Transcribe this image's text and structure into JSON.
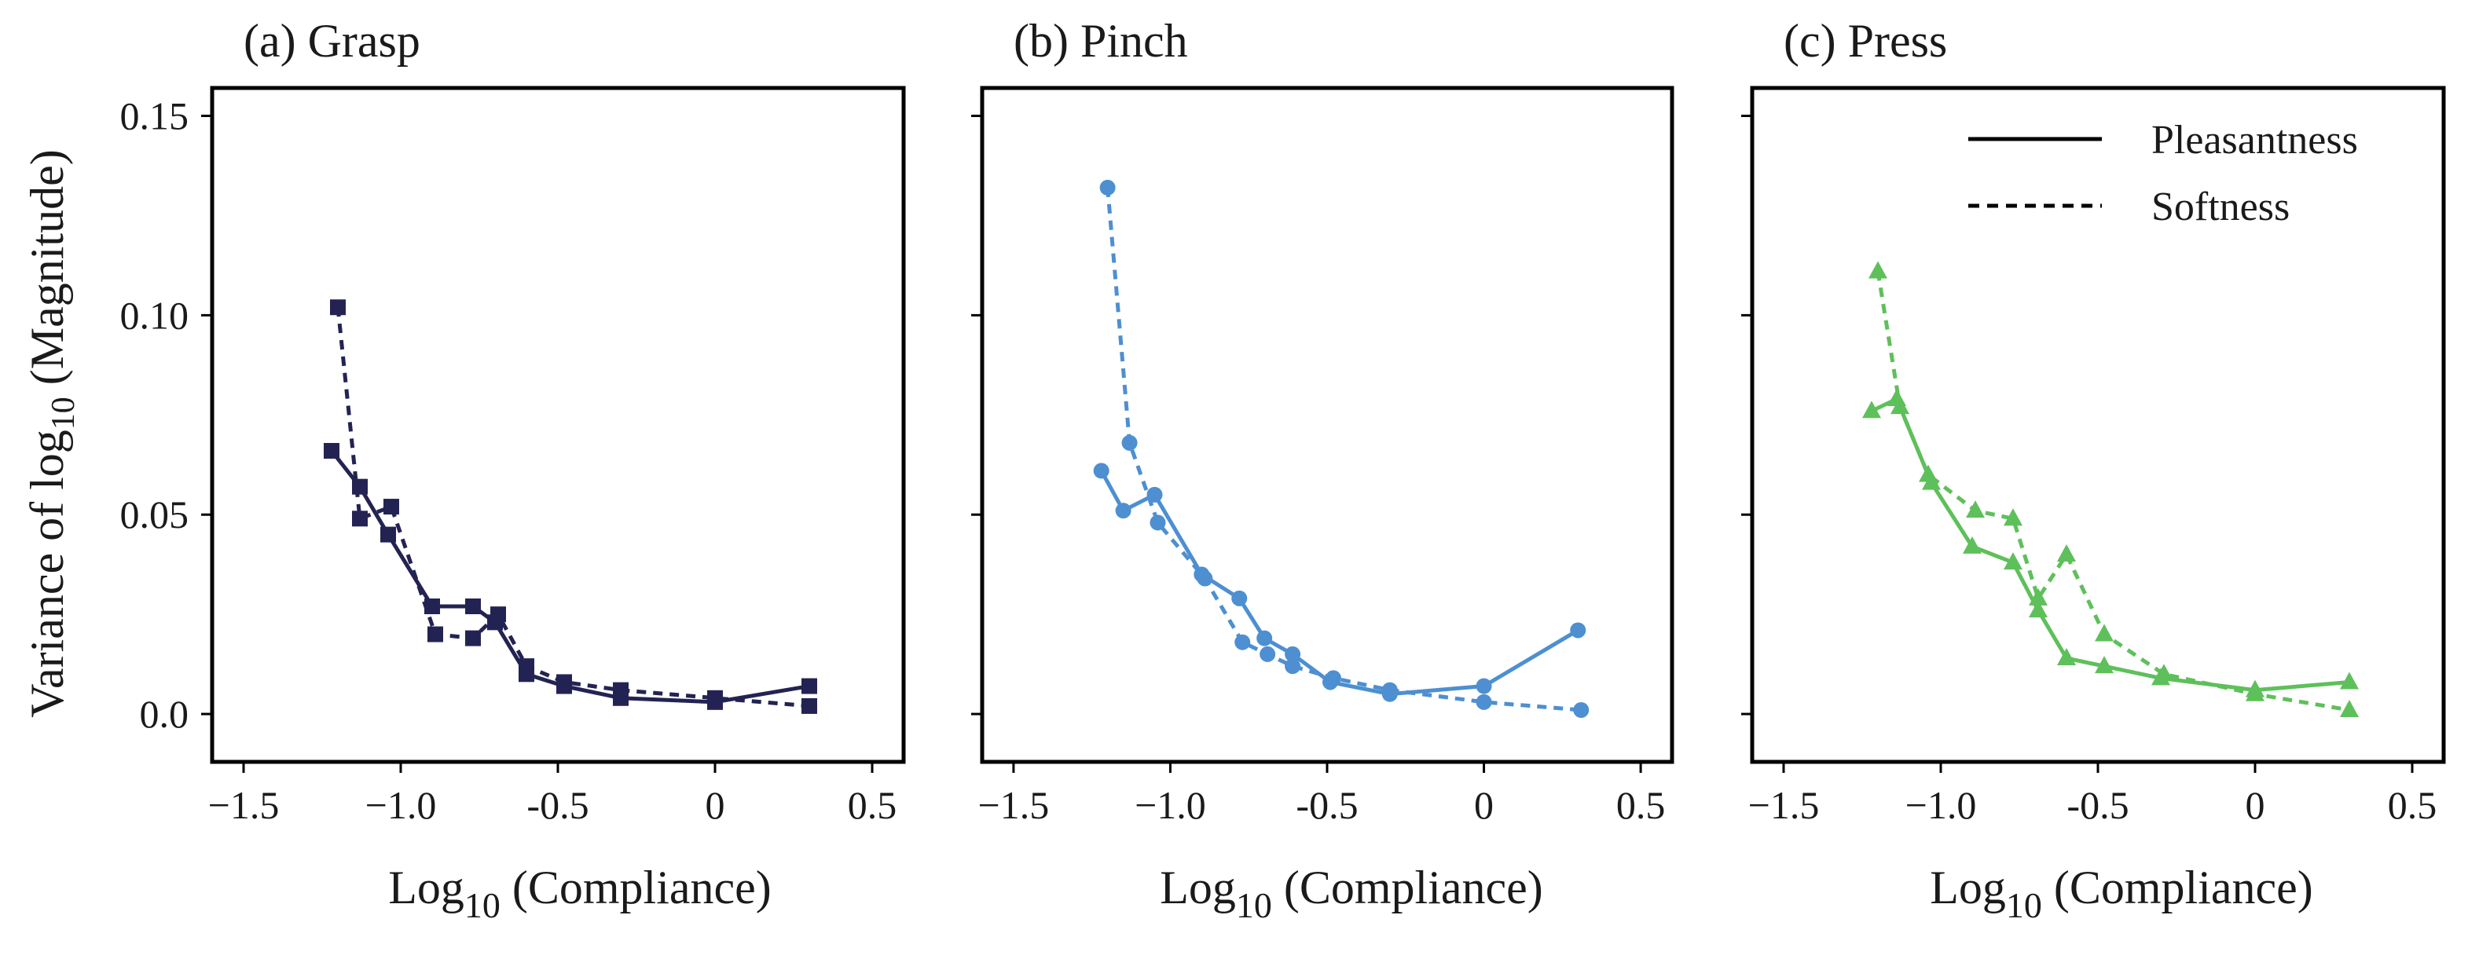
{
  "y_label": {
    "prefix": "Variance of log",
    "subscript": "10",
    "suffix": " (Magnitude)"
  },
  "x_label": {
    "prefix": "Log",
    "subscript": "10",
    "suffix": " (Compliance)"
  },
  "legend": [
    {
      "label": "Pleasantness",
      "style": "solid"
    },
    {
      "label": "Softness",
      "style": "dashed"
    }
  ],
  "x_ticks": [
    "−1.5",
    "−1.0",
    "-0.5",
    "0",
    "0.5"
  ],
  "y_ticks": [
    "0.0",
    "0.05",
    "0.10",
    "0.15"
  ],
  "chart_data": [
    {
      "type": "line",
      "title": "(a) Grasp",
      "color": "#232353",
      "marker": "square",
      "xlabel": "Log10 (Compliance)",
      "ylabel": "Variance of log10 (Magnitude)",
      "xlim": [
        -1.6,
        0.6
      ],
      "ylim": [
        -0.012,
        0.157
      ],
      "x_tick_values": [
        -1.5,
        -1.0,
        -0.5,
        0,
        0.5
      ],
      "y_tick_values": [
        0.0,
        0.05,
        0.1,
        0.15
      ],
      "series": [
        {
          "name": "Pleasantness",
          "style": "solid",
          "x": [
            -1.22,
            -1.13,
            -1.04,
            -0.9,
            -0.77,
            -0.7,
            -0.6,
            -0.48,
            -0.3,
            0.0,
            0.3
          ],
          "y": [
            0.066,
            0.057,
            0.045,
            0.027,
            0.027,
            0.023,
            0.01,
            0.007,
            0.004,
            0.003,
            0.007
          ]
        },
        {
          "name": "Softness",
          "style": "dashed",
          "x": [
            -1.2,
            -1.13,
            -1.03,
            -0.89,
            -0.77,
            -0.69,
            -0.6,
            -0.48,
            -0.3,
            0.0,
            0.3
          ],
          "y": [
            0.102,
            0.049,
            0.052,
            0.02,
            0.019,
            0.025,
            0.012,
            0.008,
            0.006,
            0.004,
            0.002
          ]
        }
      ]
    },
    {
      "type": "line",
      "title": "(b) Pinch",
      "color": "#4d8fd1",
      "marker": "circle",
      "xlabel": "Log10 (Compliance)",
      "ylabel": "Variance of log10 (Magnitude)",
      "xlim": [
        -1.6,
        0.6
      ],
      "ylim": [
        -0.012,
        0.157
      ],
      "x_tick_values": [
        -1.5,
        -1.0,
        -0.5,
        0,
        0.5
      ],
      "y_tick_values": [
        0.0,
        0.05,
        0.1,
        0.15
      ],
      "series": [
        {
          "name": "Pleasantness",
          "style": "solid",
          "x": [
            -1.22,
            -1.15,
            -1.05,
            -0.9,
            -0.78,
            -0.7,
            -0.61,
            -0.49,
            -0.3,
            0.0,
            0.3
          ],
          "y": [
            0.061,
            0.051,
            0.055,
            0.035,
            0.029,
            0.019,
            0.015,
            0.008,
            0.005,
            0.007,
            0.021
          ]
        },
        {
          "name": "Softness",
          "style": "dashed",
          "x": [
            -1.2,
            -1.13,
            -1.04,
            -0.89,
            -0.77,
            -0.69,
            -0.61,
            -0.48,
            -0.3,
            0.0,
            0.31
          ],
          "y": [
            0.132,
            0.068,
            0.048,
            0.034,
            0.018,
            0.015,
            0.012,
            0.009,
            0.006,
            0.003,
            0.001
          ]
        }
      ]
    },
    {
      "type": "line",
      "title": "(c) Press",
      "color": "#5ec05a",
      "marker": "triangle",
      "xlabel": "Log10 (Compliance)",
      "ylabel": "Variance of log10 (Magnitude)",
      "xlim": [
        -1.6,
        0.6
      ],
      "ylim": [
        -0.012,
        0.157
      ],
      "x_tick_values": [
        -1.5,
        -1.0,
        -0.5,
        0,
        0.5
      ],
      "y_tick_values": [
        0.0,
        0.05,
        0.1,
        0.15
      ],
      "legend_position": "top-right",
      "series": [
        {
          "name": "Pleasantness",
          "style": "solid",
          "x": [
            -1.22,
            -1.14,
            -1.03,
            -0.9,
            -0.77,
            -0.69,
            -0.6,
            -0.48,
            -0.3,
            0.0,
            0.3
          ],
          "y": [
            0.076,
            0.079,
            0.058,
            0.042,
            0.038,
            0.026,
            0.014,
            0.012,
            0.009,
            0.006,
            0.008
          ]
        },
        {
          "name": "Softness",
          "style": "dashed",
          "x": [
            -1.2,
            -1.13,
            -1.04,
            -0.89,
            -0.77,
            -0.69,
            -0.6,
            -0.48,
            -0.29,
            0.0,
            0.3
          ],
          "y": [
            0.111,
            0.077,
            0.06,
            0.051,
            0.049,
            0.029,
            0.04,
            0.02,
            0.01,
            0.005,
            0.001
          ]
        }
      ]
    }
  ]
}
